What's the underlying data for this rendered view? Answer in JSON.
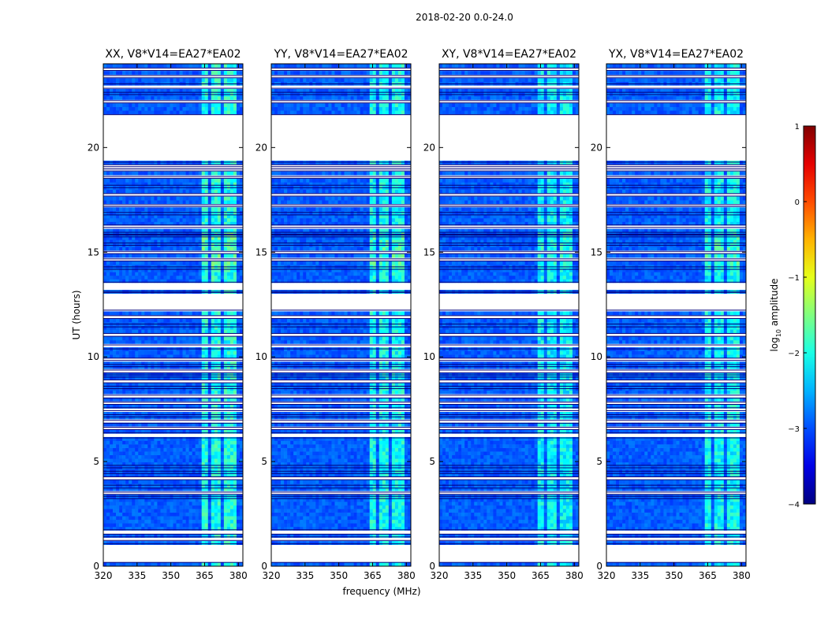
{
  "figure": {
    "suptitle": "2018-02-20 0.0-24.0"
  },
  "chart_data": {
    "type": "heatmap",
    "shared_xlabel": "frequency (MHz)",
    "shared_ylabel": "UT (hours)",
    "xlim": [
      320,
      382
    ],
    "ylim": [
      0,
      24
    ],
    "xticks": [
      320,
      335,
      350,
      365,
      380
    ],
    "yticks": [
      0,
      5,
      10,
      15,
      20
    ],
    "panels": [
      {
        "title": "XX, V8*V14=EA27*EA02",
        "intensity": 1.0
      },
      {
        "title": "YY, V8*V14=EA27*EA02",
        "intensity": 0.85
      },
      {
        "title": "XY, V8*V14=EA27*EA02",
        "intensity": 0.7
      },
      {
        "title": "YX, V8*V14=EA27*EA02",
        "intensity": 0.8
      }
    ],
    "flagged_ut_ranges": [
      [
        0.2,
        1.05
      ],
      [
        1.25,
        1.38
      ],
      [
        1.55,
        1.72
      ],
      [
        3.25,
        3.32
      ],
      [
        3.45,
        3.52
      ],
      [
        3.75,
        3.85
      ],
      [
        4.15,
        4.25
      ],
      [
        4.45,
        4.52
      ],
      [
        4.72,
        4.8
      ],
      [
        6.15,
        6.35
      ],
      [
        6.55,
        6.62
      ],
      [
        6.85,
        6.95
      ],
      [
        7.15,
        7.22
      ],
      [
        7.45,
        7.55
      ],
      [
        7.75,
        7.82
      ],
      [
        8.05,
        8.15
      ],
      [
        8.5,
        8.58
      ],
      [
        8.78,
        8.88
      ],
      [
        9.05,
        9.12
      ],
      [
        9.25,
        9.35
      ],
      [
        9.55,
        9.62
      ],
      [
        9.85,
        9.92
      ],
      [
        10.4,
        10.55
      ],
      [
        11.0,
        11.1
      ],
      [
        11.45,
        11.55
      ],
      [
        11.85,
        11.95
      ],
      [
        12.25,
        13.05
      ],
      [
        13.15,
        13.55
      ],
      [
        14.2,
        14.28
      ],
      [
        14.6,
        14.66
      ],
      [
        14.95,
        15.02
      ],
      [
        15.35,
        15.42
      ],
      [
        15.75,
        15.8
      ],
      [
        15.88,
        15.93
      ],
      [
        16.2,
        16.28
      ],
      [
        16.8,
        16.88
      ],
      [
        17.2,
        17.25
      ],
      [
        17.7,
        17.78
      ],
      [
        18.1,
        18.18
      ],
      [
        18.55,
        18.6
      ],
      [
        18.9,
        18.96
      ],
      [
        19.1,
        19.16
      ],
      [
        19.32,
        21.55
      ],
      [
        22.15,
        22.22
      ],
      [
        22.55,
        22.62
      ],
      [
        22.85,
        23.02
      ],
      [
        23.35,
        23.42
      ],
      [
        23.7,
        23.78
      ]
    ],
    "rfi_bands_mhz": [
      [
        363.5,
        366.8
      ],
      [
        367.5,
        370.2
      ],
      [
        371,
        372.8
      ],
      [
        373.5,
        376
      ],
      [
        377,
        379
      ]
    ],
    "colorbar": {
      "label": "log10 amplitude",
      "label_main": "log",
      "label_sub": "10",
      "label_rest": " amplitude",
      "range": [
        -4,
        1
      ],
      "ticks": [
        "1",
        "0",
        "−1",
        "−2",
        "−3",
        "−4"
      ],
      "tick_values": [
        1,
        0,
        -1,
        -2,
        -3,
        -4
      ],
      "colormap": "jet"
    }
  }
}
